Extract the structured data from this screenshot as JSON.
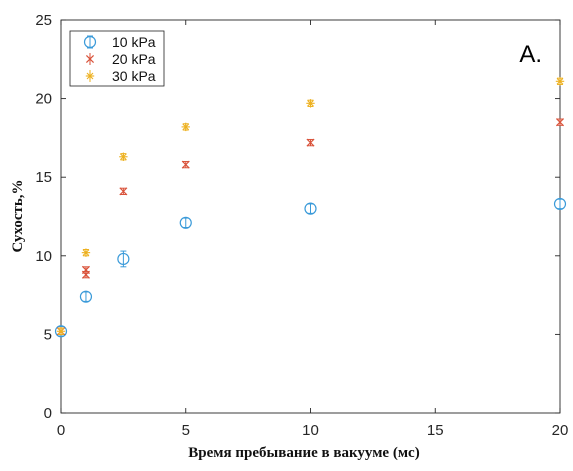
{
  "chart_data": {
    "type": "scatter",
    "title": "",
    "panel_label": "A.",
    "xlabel": "Время пребывание в вакууме (мс)",
    "ylabel": "Сухость,%",
    "xlim": [
      0,
      20
    ],
    "ylim": [
      0,
      25
    ],
    "x_ticks": [
      0,
      5,
      10,
      15,
      20
    ],
    "y_ticks": [
      0,
      5,
      10,
      15,
      20,
      25
    ],
    "grid": false,
    "legend_position": "top-left",
    "series": [
      {
        "name": "10 kPa",
        "marker": "circle-errorbar",
        "color": "#3a9ad9",
        "x": [
          0,
          1,
          2.5,
          5,
          10,
          20
        ],
        "y": [
          5.2,
          7.4,
          9.8,
          12.1,
          13.0,
          13.3
        ],
        "err": [
          0.3,
          0.3,
          0.5,
          0.3,
          0.3,
          0.3
        ]
      },
      {
        "name": "20 kPa",
        "marker": "x",
        "color": "#d9533b",
        "x": [
          0,
          1,
          1,
          2.5,
          5,
          10,
          20
        ],
        "y": [
          5.2,
          9.1,
          8.8,
          14.1,
          15.8,
          17.2,
          18.5
        ],
        "err": [
          0.2,
          0.2,
          0.2,
          0.2,
          0.2,
          0.2,
          0.2
        ]
      },
      {
        "name": "30 kPa",
        "marker": "asterisk",
        "color": "#edb120",
        "x": [
          0,
          1,
          2.5,
          5,
          10,
          20
        ],
        "y": [
          5.2,
          10.2,
          16.3,
          18.2,
          19.7,
          21.1
        ],
        "err": [
          0.2,
          0.2,
          0.2,
          0.2,
          0.2,
          0.2
        ]
      }
    ]
  }
}
